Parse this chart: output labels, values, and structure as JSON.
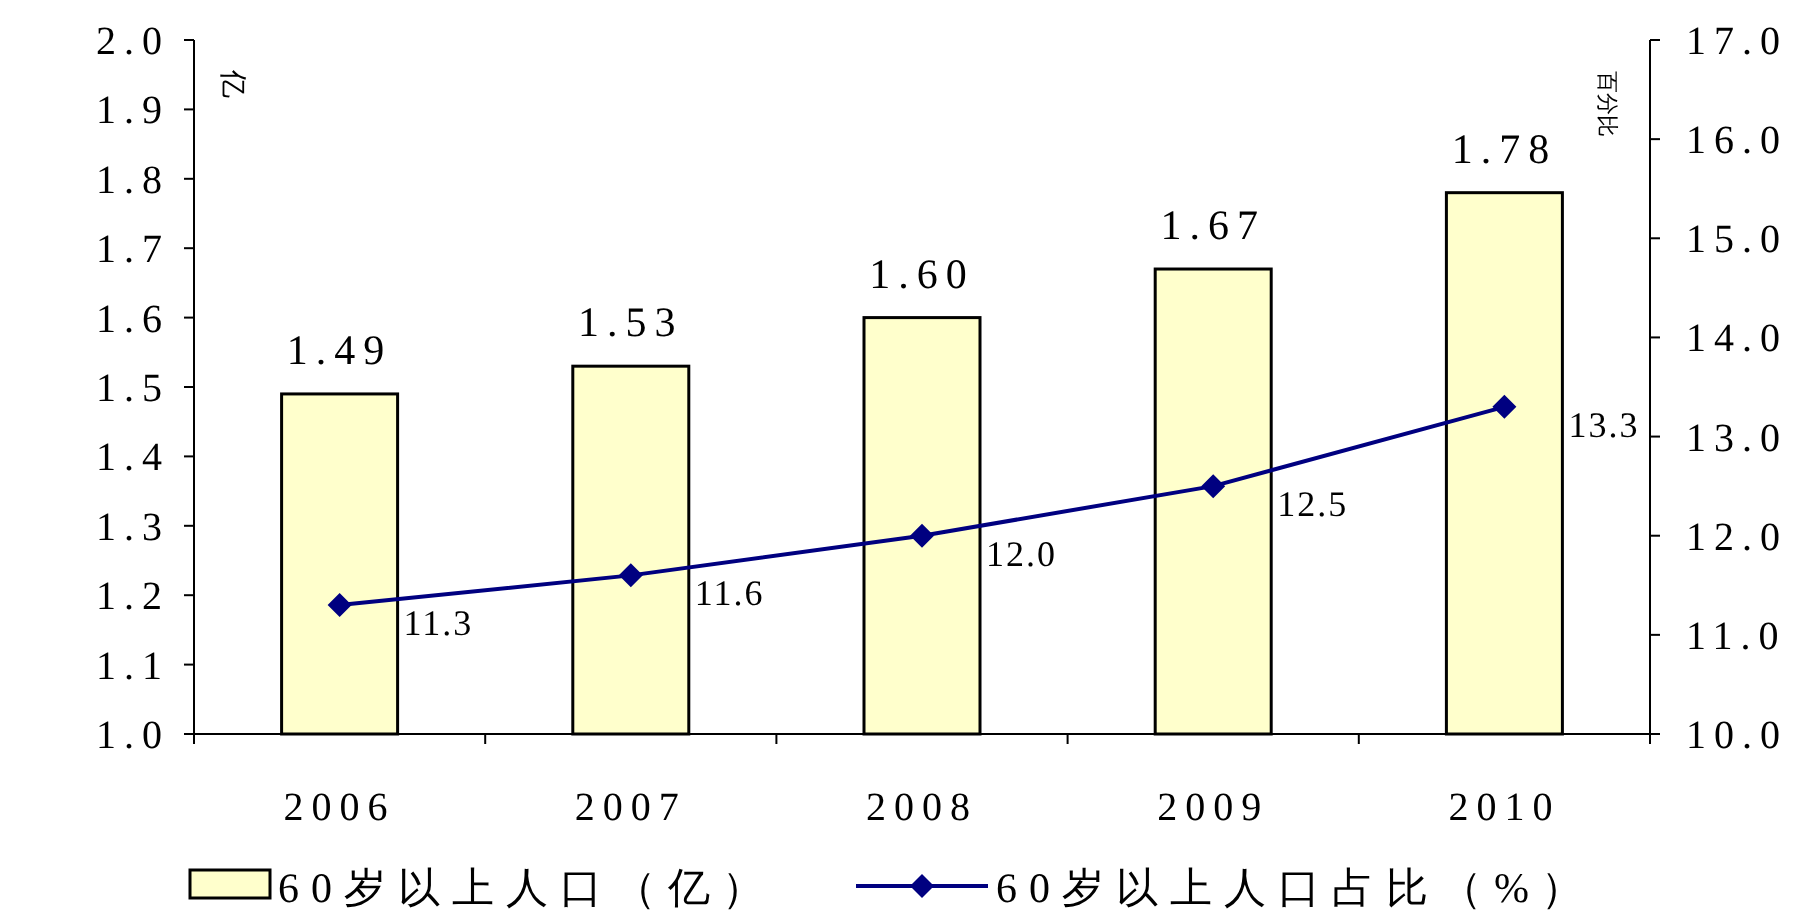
{
  "chart_data": {
    "type": "bar",
    "categories": [
      "2006",
      "2007",
      "2008",
      "2009",
      "2010"
    ],
    "ylabel": "亿",
    "y2label": "百分比",
    "ylim": [
      1.0,
      2.0
    ],
    "yticks": [
      {
        "value": 1.0,
        "label": "1.0"
      },
      1.1,
      1.2,
      1.3,
      1.4,
      1.5,
      1.6,
      1.7,
      1.8,
      1.9,
      {
        "value": 2.0,
        "label": "2.0"
      }
    ],
    "y2lim": [
      10.0,
      17.0
    ],
    "y2ticks": [
      {
        "value": 10,
        "label": "10.0"
      },
      {
        "value": 11,
        "label": "11.0"
      },
      {
        "value": 12,
        "label": "12.0"
      },
      {
        "value": 13,
        "label": "13.0"
      },
      {
        "value": 14,
        "label": "14.0"
      },
      {
        "value": 15,
        "label": "15.0"
      },
      {
        "value": 16,
        "label": "16.0"
      },
      {
        "value": 17,
        "label": "17.0"
      }
    ],
    "legend": "bottom",
    "grid": false,
    "series": [
      {
        "name": "60岁以上人口（亿）",
        "color": "#ffffcc",
        "values": [
          1.49,
          1.53,
          1.6,
          1.67,
          1.78
        ],
        "value_labels": [
          "1.49",
          "1.53",
          "1.60",
          "1.67",
          "1.78"
        ]
      },
      {
        "name": "60岁以上人口占比（%）",
        "type": "line",
        "axis": "y2",
        "color": "#000080",
        "marker": "diamond",
        "line_style": "solid",
        "values": [
          11.3,
          11.6,
          12.0,
          12.5,
          13.3
        ],
        "value_labels": [
          "11.3",
          "11.6",
          "12.0",
          "12.5",
          "13.3"
        ]
      }
    ]
  }
}
